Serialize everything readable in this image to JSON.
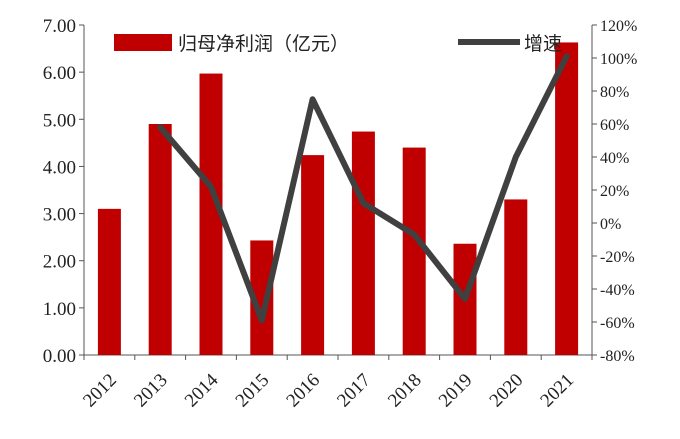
{
  "chart_data": {
    "type": "bar+line",
    "categories": [
      "2012",
      "2013",
      "2014",
      "2015",
      "2016",
      "2017",
      "2018",
      "2019",
      "2020",
      "2021"
    ],
    "series": [
      {
        "name": "归母净利润（亿元）",
        "type": "bar",
        "axis": "left",
        "color": "#c00000",
        "values": [
          3.1,
          4.9,
          5.97,
          2.43,
          4.24,
          4.74,
          4.4,
          2.36,
          3.3,
          6.63
        ]
      },
      {
        "name": "增速",
        "type": "line",
        "axis": "right",
        "color": "#404040",
        "values": [
          null,
          58,
          22,
          -59,
          75,
          12,
          -7,
          -46,
          40,
          101
        ]
      }
    ],
    "y_left": {
      "min": 0,
      "max": 7,
      "step": 1,
      "ticks": [
        "0.00",
        "1.00",
        "2.00",
        "3.00",
        "4.00",
        "5.00",
        "6.00",
        "7.00"
      ]
    },
    "y_right": {
      "min": -80,
      "max": 120,
      "step": 20,
      "ticks": [
        "-80%",
        "-60%",
        "-40%",
        "-20%",
        "0%",
        "20%",
        "40%",
        "60%",
        "80%",
        "100%",
        "120%"
      ]
    },
    "legend_position": "top",
    "grid": false
  }
}
